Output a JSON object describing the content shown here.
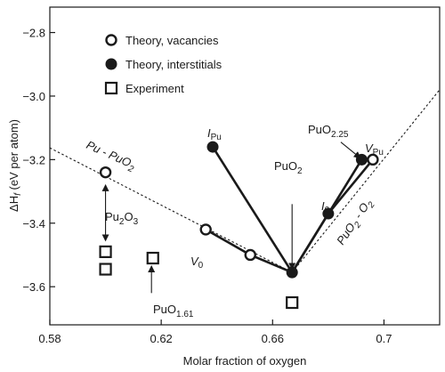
{
  "chart_data": {
    "type": "scatter",
    "xlabel": "Molar fraction of oxygen",
    "ylabel_main": "ΔH",
    "ylabel_sub": "f",
    "ylabel_rest": " (eV per atom)",
    "xlim": [
      0.58,
      0.72
    ],
    "ylim": [
      -3.72,
      -2.72
    ],
    "x_ticks": [
      {
        "value": 0.58,
        "label": "0.58"
      },
      {
        "value": 0.62,
        "label": "0.62"
      },
      {
        "value": 0.66,
        "label": "0.66"
      },
      {
        "value": 0.7,
        "label": "0.7"
      }
    ],
    "y_ticks": [
      {
        "value": -2.8,
        "label": "−2.8"
      },
      {
        "value": -3.0,
        "label": "−3.0"
      },
      {
        "value": -3.2,
        "label": "−3.2"
      },
      {
        "value": -3.4,
        "label": "−3.4"
      },
      {
        "value": -3.6,
        "label": "−3.6"
      }
    ],
    "legend": {
      "placement": "top-center",
      "items": [
        {
          "label": "Theory, vacancies",
          "marker": "open-circle"
        },
        {
          "label": "Theory, interstitials",
          "marker": "filled-circle"
        },
        {
          "label": "Experiment",
          "marker": "open-square"
        }
      ]
    },
    "series": [
      {
        "name": "Theory, vacancies",
        "marker": "open-circle",
        "points": [
          {
            "x": 0.6,
            "y": -3.24
          },
          {
            "x": 0.636,
            "y": -3.42
          },
          {
            "x": 0.652,
            "y": -3.5
          },
          {
            "x": 0.696,
            "y": -3.2
          }
        ]
      },
      {
        "name": "Theory, interstitials",
        "marker": "filled-circle",
        "points": [
          {
            "x": 0.667,
            "y": -3.555
          },
          {
            "x": 0.6385,
            "y": -3.16
          },
          {
            "x": 0.68,
            "y": -3.37
          },
          {
            "x": 0.692,
            "y": -3.2
          }
        ]
      },
      {
        "name": "Experiment",
        "marker": "open-square",
        "points": [
          {
            "x": 0.6,
            "y": -3.49
          },
          {
            "x": 0.6,
            "y": -3.545
          },
          {
            "x": 0.617,
            "y": -3.51
          },
          {
            "x": 0.667,
            "y": -3.65
          }
        ]
      }
    ],
    "solid_lines": [
      {
        "from": [
          0.667,
          -3.555
        ],
        "to": [
          0.6385,
          -3.16
        ]
      },
      {
        "from": [
          0.667,
          -3.555
        ],
        "to": [
          0.692,
          -3.2
        ]
      },
      {
        "from": [
          0.636,
          -3.42
        ],
        "to": [
          0.652,
          -3.5
        ]
      },
      {
        "from": [
          0.652,
          -3.5
        ],
        "to": [
          0.667,
          -3.555
        ]
      },
      {
        "from": [
          0.667,
          -3.555
        ],
        "to": [
          0.68,
          -3.37
        ]
      },
      {
        "from": [
          0.68,
          -3.37
        ],
        "to": [
          0.696,
          -3.2
        ]
      }
    ],
    "dashed_lines": [
      {
        "from": [
          0.58,
          -3.163
        ],
        "to": [
          0.667,
          -3.555
        ]
      },
      {
        "from": [
          0.667,
          -3.555
        ],
        "to": [
          0.72,
          -2.98
        ]
      }
    ],
    "arrows": [
      {
        "from": [
          0.667,
          -3.34
        ],
        "to": [
          0.667,
          -3.545
        ],
        "heads": "end"
      },
      {
        "from": [
          0.6845,
          -3.145
        ],
        "to": [
          0.6915,
          -3.195
        ],
        "heads": "end"
      },
      {
        "from": [
          0.6,
          -3.28
        ],
        "to": [
          0.6,
          -3.455
        ],
        "heads": "both"
      },
      {
        "from": [
          0.6165,
          -3.62
        ],
        "to": [
          0.6165,
          -3.535
        ],
        "heads": "end"
      }
    ],
    "annotations": {
      "pu_pu": {
        "main": "I",
        "sub": "Pu",
        "italic": true
      },
      "vpu": {
        "main": "V",
        "sub": "Pu",
        "italic": true
      },
      "v0": {
        "main": "V",
        "sub": "0",
        "italic": true
      },
      "i0": {
        "main": "I",
        "sub": "0",
        "italic": true
      },
      "puo2": {
        "main": "PuO",
        "sub": "2"
      },
      "puo225": {
        "main": "PuO",
        "sub": "2.25"
      },
      "pu2o3": {
        "a": "Pu",
        "b": "2",
        "c": "O",
        "d": "3"
      },
      "puo161": {
        "main": "PuO",
        "sub": "1.61"
      },
      "pu_puo2": {
        "a": "Pu - PuO",
        "b": "2"
      },
      "puo2_o2": {
        "a": "PuO",
        "b": "2",
        "c": " - O",
        "d": "2"
      }
    }
  }
}
